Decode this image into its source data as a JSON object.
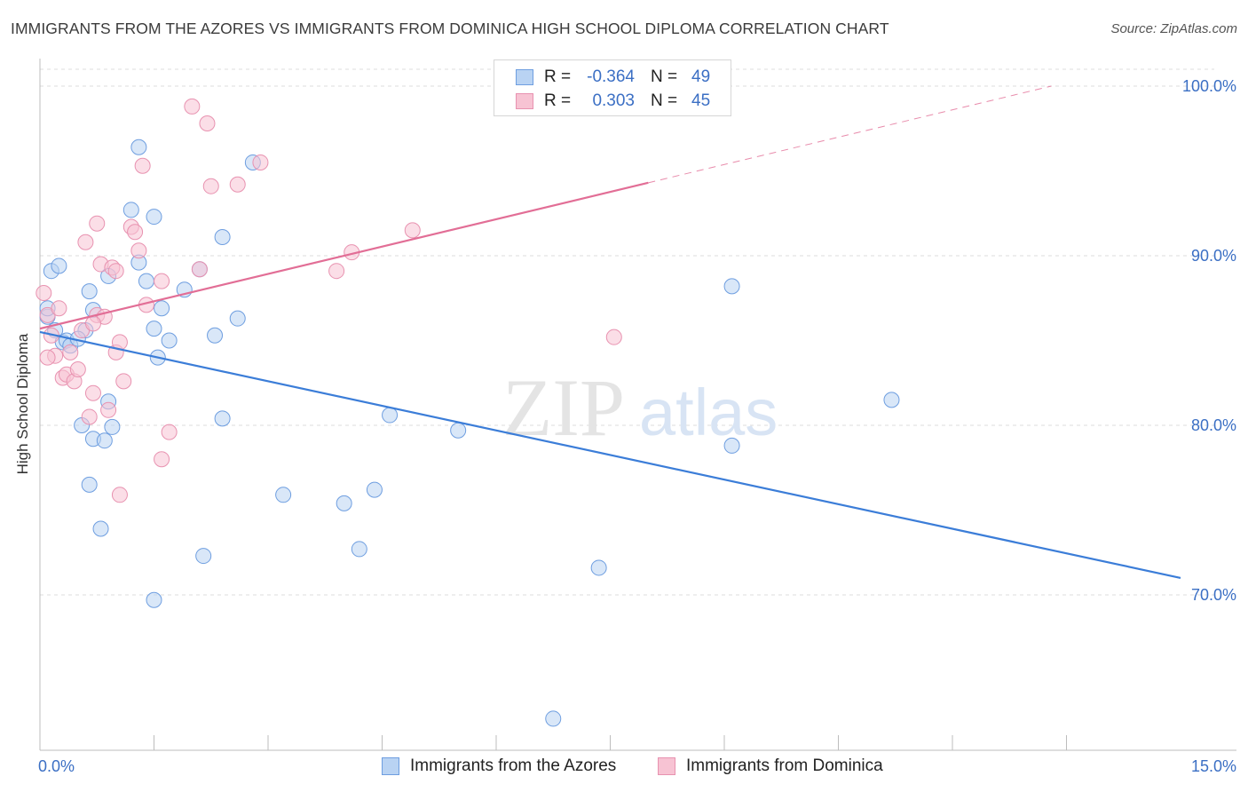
{
  "title": "IMMIGRANTS FROM THE AZORES VS IMMIGRANTS FROM DOMINICA HIGH SCHOOL DIPLOMA CORRELATION CHART",
  "source": "Source: ZipAtlas.com",
  "colors": {
    "blue": "#3b7dd8",
    "blue_fill": "#b9d3f3",
    "pink": "#e26e96",
    "pink_fill": "#f7c3d3",
    "axis_text": "#3b6fc4",
    "grid": "#dcdcdc"
  },
  "legend": {
    "blue": {
      "r_label": "R =",
      "r_value": "-0.364",
      "n_label": "N =",
      "n_value": "49"
    },
    "pink": {
      "r_label": "R =",
      "r_value": "0.303",
      "n_label": "N =",
      "n_value": "45"
    }
  },
  "watermark": {
    "zip": "ZIP",
    "atlas": "atlas"
  },
  "chart_data": {
    "type": "scatter",
    "title": "IMMIGRANTS FROM THE AZORES VS IMMIGRANTS FROM DOMINICA HIGH SCHOOL DIPLOMA CORRELATION CHART",
    "xlabel": "",
    "ylabel": "High School Diploma",
    "xlim": [
      0,
      15
    ],
    "ylim": [
      60.5,
      102
    ],
    "x_tick_labels": [
      {
        "value": 0,
        "label": "0.0%"
      },
      {
        "value": 15,
        "label": "15.0%"
      }
    ],
    "y_ticks": [
      {
        "value": 100,
        "label": "100.0%"
      },
      {
        "value": 90,
        "label": "90.0%"
      },
      {
        "value": 80,
        "label": "80.0%"
      },
      {
        "value": 70,
        "label": "70.0%"
      }
    ],
    "x_minor_ticks": [
      1.5,
      3.0,
      4.5,
      6.0,
      7.5,
      9.0,
      10.5,
      12.0,
      13.5
    ],
    "series": [
      {
        "name": "Immigrants from the Azores",
        "color": "blue",
        "trend": {
          "x": [
            0.0,
            15.0
          ],
          "y": [
            85.5,
            71.0
          ],
          "dashed_from": null
        },
        "points": [
          {
            "x": 0.1,
            "y": 86.4
          },
          {
            "x": 0.15,
            "y": 89.1
          },
          {
            "x": 0.2,
            "y": 85.6
          },
          {
            "x": 0.25,
            "y": 89.4
          },
          {
            "x": 0.3,
            "y": 84.9
          },
          {
            "x": 0.35,
            "y": 85.0
          },
          {
            "x": 0.4,
            "y": 84.7
          },
          {
            "x": 0.6,
            "y": 85.6
          },
          {
            "x": 0.65,
            "y": 87.9
          },
          {
            "x": 0.7,
            "y": 86.8
          },
          {
            "x": 0.55,
            "y": 80.0
          },
          {
            "x": 0.7,
            "y": 79.2
          },
          {
            "x": 0.95,
            "y": 79.9
          },
          {
            "x": 0.9,
            "y": 81.4
          },
          {
            "x": 0.85,
            "y": 79.1
          },
          {
            "x": 1.3,
            "y": 96.4
          },
          {
            "x": 1.2,
            "y": 92.7
          },
          {
            "x": 1.5,
            "y": 92.3
          },
          {
            "x": 1.3,
            "y": 89.6
          },
          {
            "x": 1.4,
            "y": 88.5
          },
          {
            "x": 1.5,
            "y": 85.7
          },
          {
            "x": 1.6,
            "y": 86.9
          },
          {
            "x": 1.55,
            "y": 84.0
          },
          {
            "x": 1.7,
            "y": 85.0
          },
          {
            "x": 1.9,
            "y": 88.0
          },
          {
            "x": 2.1,
            "y": 89.2
          },
          {
            "x": 2.3,
            "y": 85.3
          },
          {
            "x": 2.4,
            "y": 91.1
          },
          {
            "x": 2.6,
            "y": 86.3
          },
          {
            "x": 2.8,
            "y": 95.5
          },
          {
            "x": 2.4,
            "y": 80.4
          },
          {
            "x": 0.65,
            "y": 76.5
          },
          {
            "x": 0.8,
            "y": 73.9
          },
          {
            "x": 1.5,
            "y": 69.7
          },
          {
            "x": 2.15,
            "y": 72.3
          },
          {
            "x": 3.2,
            "y": 75.9
          },
          {
            "x": 4.0,
            "y": 75.4
          },
          {
            "x": 4.4,
            "y": 76.2
          },
          {
            "x": 4.2,
            "y": 72.7
          },
          {
            "x": 4.6,
            "y": 80.6
          },
          {
            "x": 5.5,
            "y": 79.7
          },
          {
            "x": 7.35,
            "y": 71.6
          },
          {
            "x": 6.75,
            "y": 62.7
          },
          {
            "x": 9.1,
            "y": 88.2
          },
          {
            "x": 9.1,
            "y": 78.8
          },
          {
            "x": 11.2,
            "y": 81.5
          },
          {
            "x": 0.1,
            "y": 86.9
          },
          {
            "x": 0.5,
            "y": 85.1
          },
          {
            "x": 0.9,
            "y": 88.8
          }
        ]
      },
      {
        "name": "Immigrants from Dominica",
        "color": "pink",
        "trend": {
          "x": [
            0.0,
            13.3
          ],
          "y": [
            85.7,
            100.0
          ],
          "dashed_from": 8.0
        },
        "points": [
          {
            "x": 0.05,
            "y": 87.8
          },
          {
            "x": 0.1,
            "y": 86.5
          },
          {
            "x": 0.15,
            "y": 85.3
          },
          {
            "x": 0.2,
            "y": 84.1
          },
          {
            "x": 0.1,
            "y": 84.0
          },
          {
            "x": 0.25,
            "y": 86.9
          },
          {
            "x": 0.3,
            "y": 82.8
          },
          {
            "x": 0.35,
            "y": 83.0
          },
          {
            "x": 0.4,
            "y": 84.3
          },
          {
            "x": 0.45,
            "y": 82.6
          },
          {
            "x": 0.5,
            "y": 83.3
          },
          {
            "x": 0.55,
            "y": 85.6
          },
          {
            "x": 0.6,
            "y": 90.8
          },
          {
            "x": 0.65,
            "y": 80.5
          },
          {
            "x": 0.7,
            "y": 81.9
          },
          {
            "x": 0.75,
            "y": 91.9
          },
          {
            "x": 0.8,
            "y": 89.5
          },
          {
            "x": 0.75,
            "y": 86.5
          },
          {
            "x": 0.85,
            "y": 86.4
          },
          {
            "x": 0.95,
            "y": 89.3
          },
          {
            "x": 1.0,
            "y": 89.1
          },
          {
            "x": 0.9,
            "y": 80.9
          },
          {
            "x": 1.0,
            "y": 84.3
          },
          {
            "x": 1.05,
            "y": 84.9
          },
          {
            "x": 1.1,
            "y": 82.6
          },
          {
            "x": 1.05,
            "y": 75.9
          },
          {
            "x": 1.2,
            "y": 91.7
          },
          {
            "x": 1.25,
            "y": 91.4
          },
          {
            "x": 1.3,
            "y": 90.3
          },
          {
            "x": 1.35,
            "y": 95.3
          },
          {
            "x": 1.4,
            "y": 87.1
          },
          {
            "x": 1.6,
            "y": 88.5
          },
          {
            "x": 1.6,
            "y": 78.0
          },
          {
            "x": 1.7,
            "y": 79.6
          },
          {
            "x": 2.0,
            "y": 98.8
          },
          {
            "x": 2.1,
            "y": 89.2
          },
          {
            "x": 2.2,
            "y": 97.8
          },
          {
            "x": 2.25,
            "y": 94.1
          },
          {
            "x": 2.6,
            "y": 94.2
          },
          {
            "x": 2.9,
            "y": 95.5
          },
          {
            "x": 3.9,
            "y": 89.1
          },
          {
            "x": 4.1,
            "y": 90.2
          },
          {
            "x": 4.9,
            "y": 91.5
          },
          {
            "x": 7.55,
            "y": 85.2
          },
          {
            "x": 0.7,
            "y": 86.0
          }
        ]
      }
    ]
  },
  "bottom_legend": [
    "Immigrants from the Azores",
    "Immigrants from Dominica"
  ]
}
